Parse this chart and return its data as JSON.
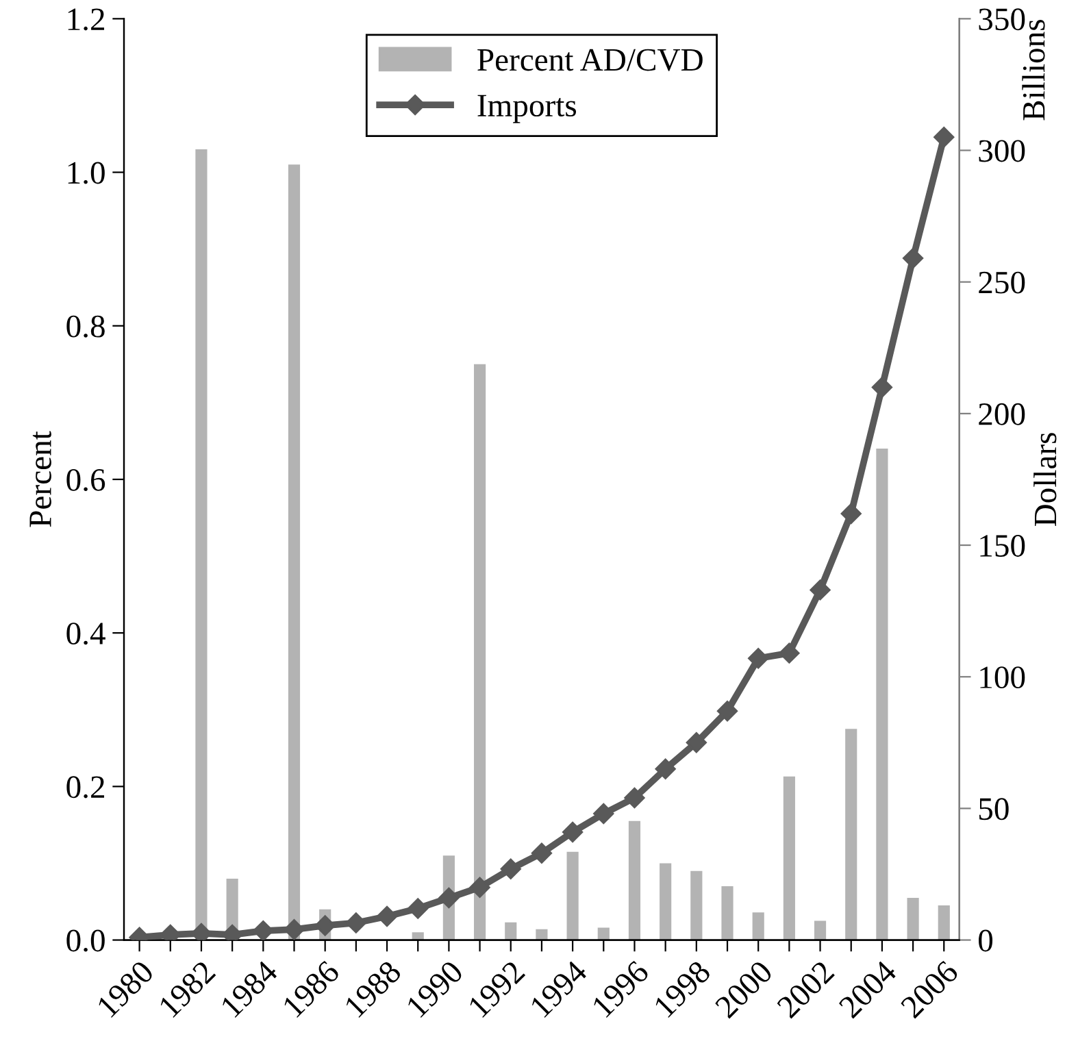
{
  "chart_data": {
    "type": "bar",
    "categories": [
      "1980",
      null,
      "1982",
      null,
      "1984",
      null,
      "1986",
      null,
      "1988",
      null,
      "1990",
      null,
      "1992",
      null,
      "1994",
      null,
      "1996",
      null,
      "1998",
      null,
      "2000",
      null,
      "2002",
      null,
      "2004",
      null,
      "2006"
    ],
    "series": [
      {
        "name": "Percent AD/CVD",
        "color": "#b3b3b3",
        "values": [
          0,
          0,
          1.03,
          0.08,
          0,
          1.01,
          0.04,
          0,
          0,
          0.01,
          0.11,
          0.75,
          0.023,
          0.014,
          0.115,
          0.016,
          0.155,
          0.1,
          0.09,
          0.07,
          0.036,
          0.213,
          0.025,
          0.275,
          0.64,
          0.055,
          0.045
        ]
      },
      {
        "name": "Imports",
        "type": "line",
        "axis": "y2",
        "color": "#595959",
        "marker": "diamond",
        "values": [
          1,
          2,
          2.5,
          2,
          3.5,
          4,
          5.5,
          6.5,
          9,
          12,
          16,
          20,
          27,
          33,
          41,
          48,
          54,
          65,
          75,
          87,
          107,
          109,
          133,
          162,
          210,
          259,
          305
        ]
      }
    ],
    "ylabel": "Percent",
    "y2label": "Dollars",
    "annotations": [
      "Billions"
    ],
    "ylim": [
      0,
      1.2
    ],
    "yticks": [
      {
        "value": 0,
        "label": "0.0"
      },
      {
        "value": 0.2,
        "label": "0.2"
      },
      {
        "value": 0.4,
        "label": "0.4"
      },
      {
        "value": 0.6,
        "label": "0.6"
      },
      {
        "value": 0.8,
        "label": "0.8"
      },
      {
        "value": 1.0,
        "label": "1.0"
      },
      {
        "value": 1.2,
        "label": "1.2"
      }
    ],
    "y2lim": [
      0,
      350
    ],
    "y2ticks": [
      0,
      50,
      100,
      150,
      200,
      250,
      300,
      350
    ],
    "legend": "top",
    "grid": false
  }
}
